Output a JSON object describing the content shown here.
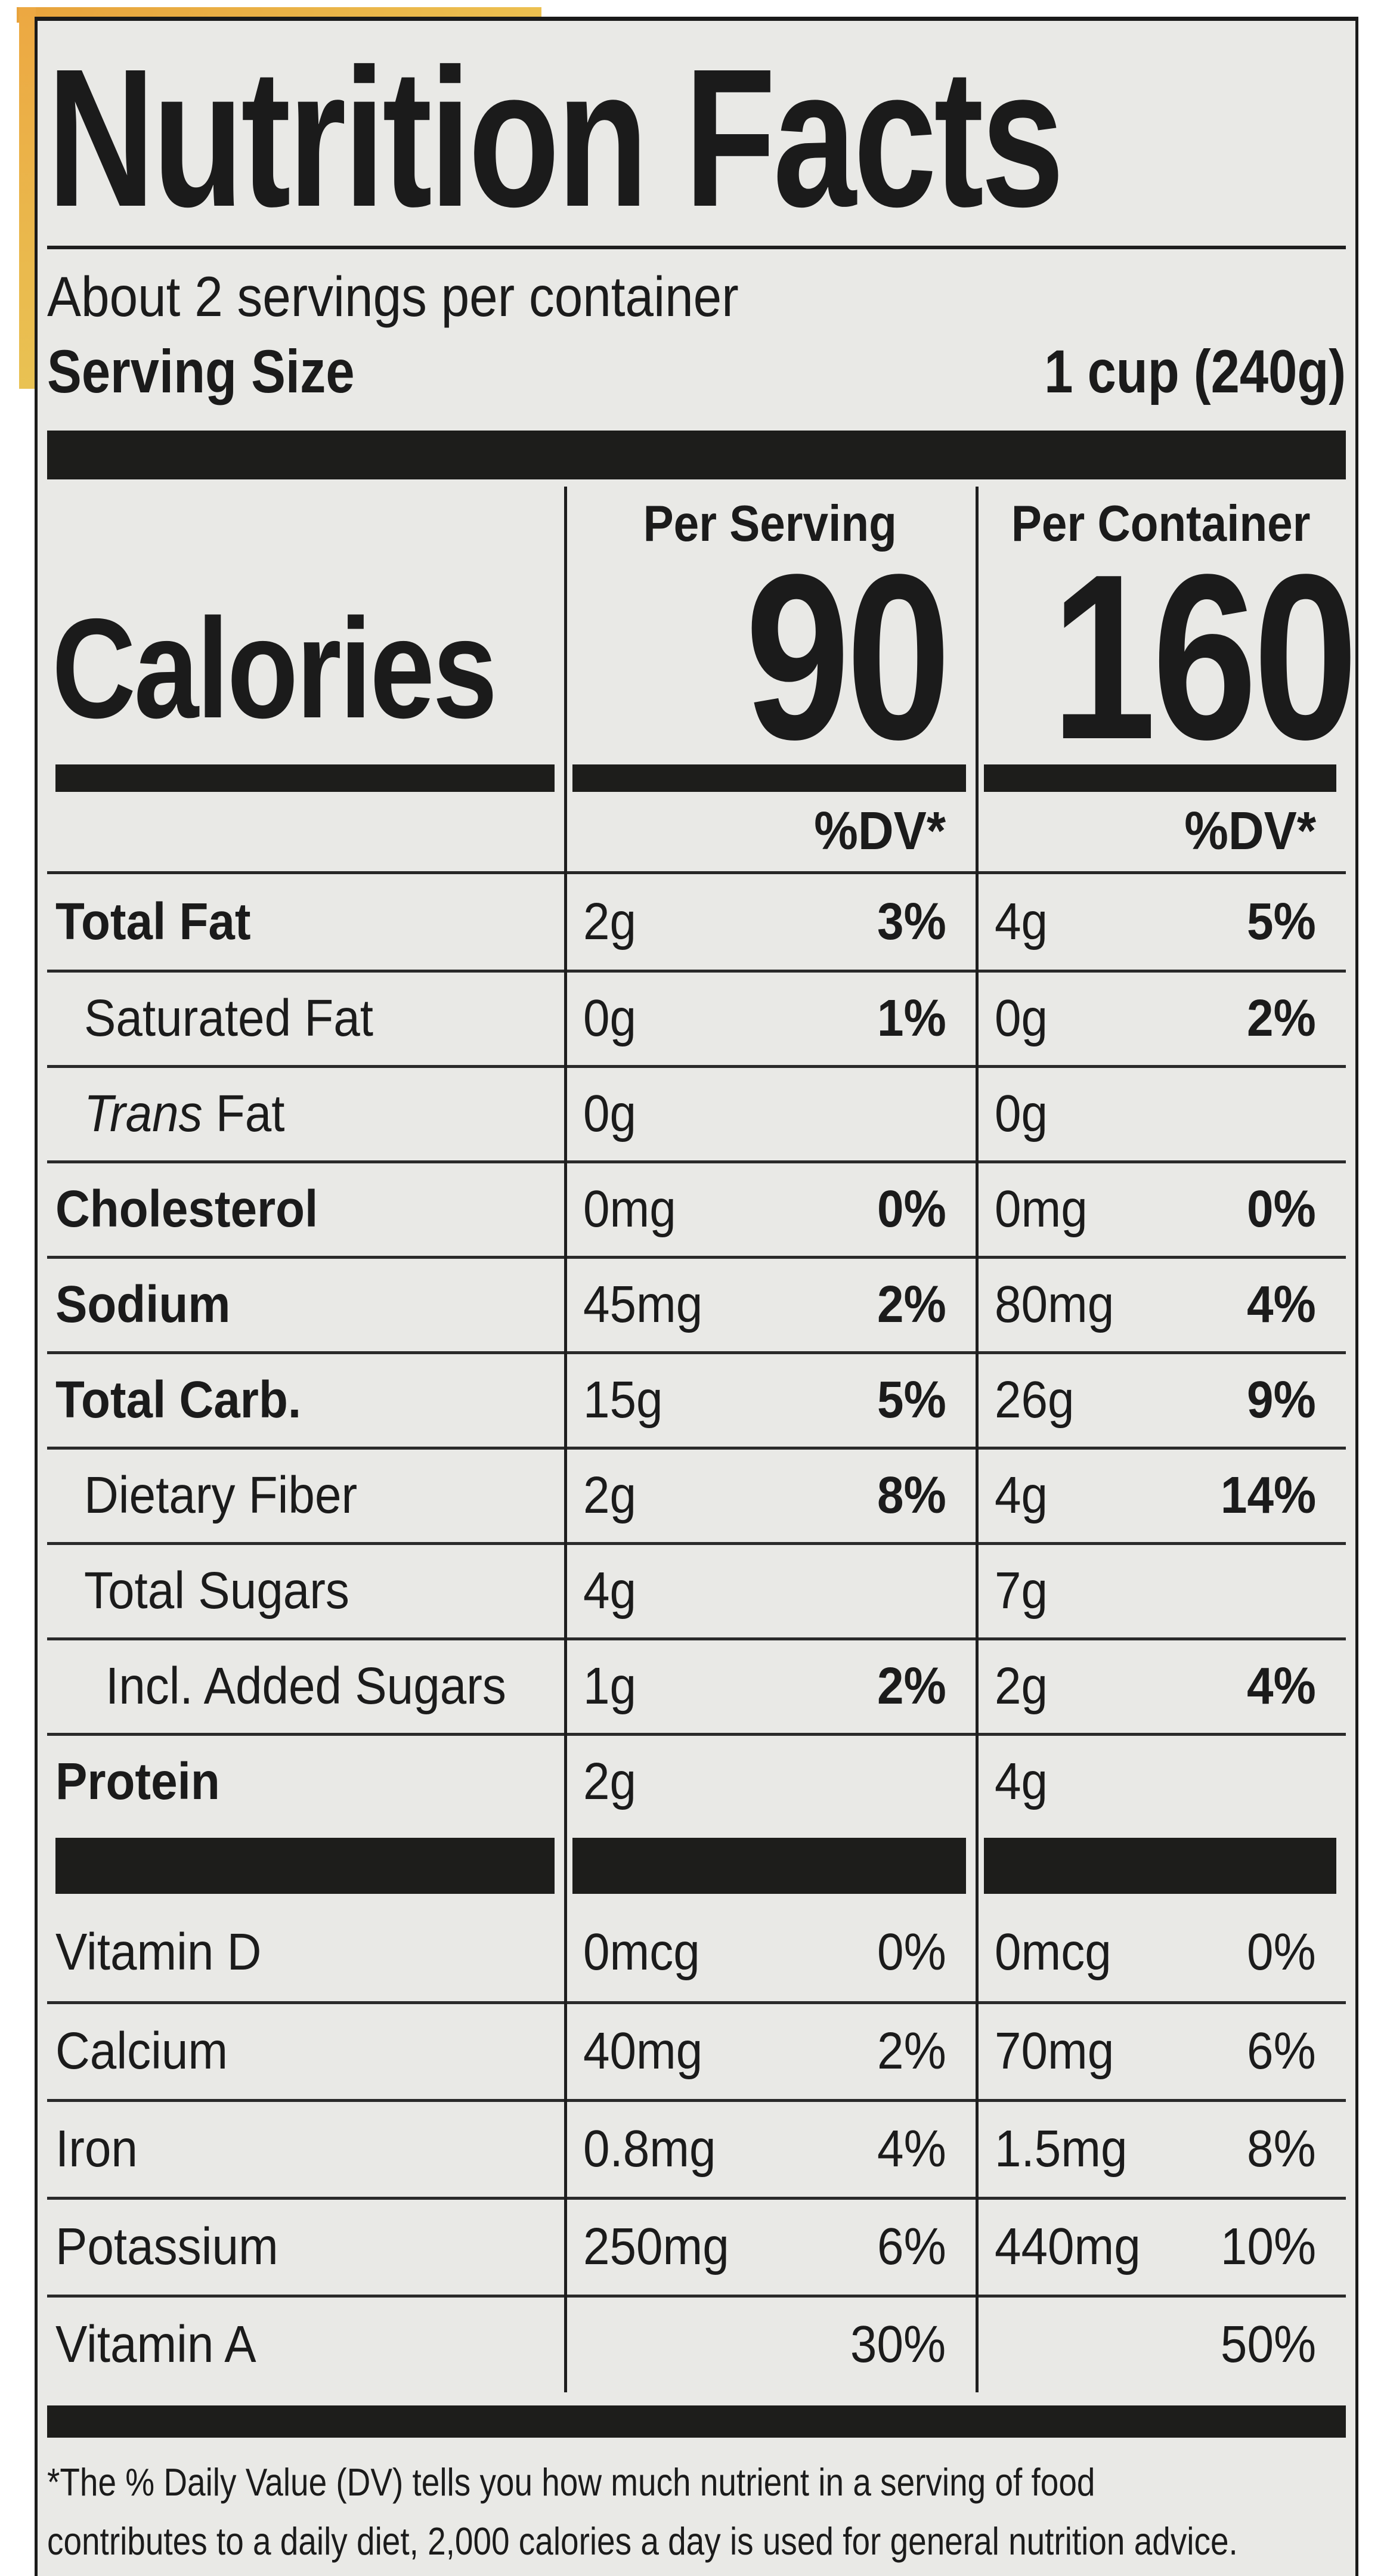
{
  "page": {
    "background_color": "#ffffff",
    "accent_strip_color": "#e9a93e",
    "label_background_color": "#e9e9e6",
    "ink_color": "#1b1b1b"
  },
  "label": {
    "title": "Nutrition Facts",
    "servings_per_container": "About 2 servings per container",
    "serving_size_label": "Serving Size",
    "serving_size_value": "1 cup (240g)",
    "calories": {
      "label": "Calories",
      "col_serving_header": "Per Serving",
      "col_container_header": "Per Container",
      "per_serving": "90",
      "per_container": "160"
    },
    "dv_header": "%DV*",
    "nutrient_rows": [
      {
        "name": "Total Fat",
        "style": "b",
        "serving": {
          "amount": "2g",
          "dv": "3%"
        },
        "container": {
          "amount": "4g",
          "dv": "5%"
        },
        "dv_bold": true
      },
      {
        "name": "Saturated Fat",
        "style": "i1",
        "serving": {
          "amount": "0g",
          "dv": "1%"
        },
        "container": {
          "amount": "0g",
          "dv": "2%"
        },
        "dv_bold": true
      },
      {
        "name_italic": "Trans",
        "name": "Fat",
        "style": "i1",
        "serving": {
          "amount": "0g",
          "dv": ""
        },
        "container": {
          "amount": "0g",
          "dv": ""
        },
        "dv_bold": true
      },
      {
        "name": "Cholesterol",
        "style": "b",
        "serving": {
          "amount": "0mg",
          "dv": "0%"
        },
        "container": {
          "amount": "0mg",
          "dv": "0%"
        },
        "dv_bold": true
      },
      {
        "name": "Sodium",
        "style": "b",
        "serving": {
          "amount": "45mg",
          "dv": "2%"
        },
        "container": {
          "amount": "80mg",
          "dv": "4%"
        },
        "dv_bold": true
      },
      {
        "name": "Total Carb.",
        "style": "b",
        "serving": {
          "amount": "15g",
          "dv": "5%"
        },
        "container": {
          "amount": "26g",
          "dv": "9%"
        },
        "dv_bold": true
      },
      {
        "name": "Dietary Fiber",
        "style": "i1",
        "serving": {
          "amount": "2g",
          "dv": "8%"
        },
        "container": {
          "amount": "4g",
          "dv": "14%"
        },
        "dv_bold": true
      },
      {
        "name": "Total Sugars",
        "style": "i1",
        "serving": {
          "amount": "4g",
          "dv": ""
        },
        "container": {
          "amount": "7g",
          "dv": ""
        },
        "dv_bold": true
      },
      {
        "name": "Incl. Added Sugars",
        "style": "i2",
        "serving": {
          "amount": "1g",
          "dv": "2%"
        },
        "container": {
          "amount": "2g",
          "dv": "4%"
        },
        "dv_bold": true
      },
      {
        "name": "Protein",
        "style": "b",
        "serving": {
          "amount": "2g",
          "dv": ""
        },
        "container": {
          "amount": "4g",
          "dv": ""
        },
        "dv_bold": true
      }
    ],
    "vitamin_rows": [
      {
        "name": "Vitamin D",
        "style": "",
        "serving": {
          "amount": "0mcg",
          "dv": "0%"
        },
        "container": {
          "amount": "0mcg",
          "dv": "0%"
        },
        "dv_bold": false
      },
      {
        "name": "Calcium",
        "style": "",
        "serving": {
          "amount": "40mg",
          "dv": "2%"
        },
        "container": {
          "amount": "70mg",
          "dv": "6%"
        },
        "dv_bold": false
      },
      {
        "name": "Iron",
        "style": "",
        "serving": {
          "amount": "0.8mg",
          "dv": "4%"
        },
        "container": {
          "amount": "1.5mg",
          "dv": "8%"
        },
        "dv_bold": false
      },
      {
        "name": "Potassium",
        "style": "",
        "serving": {
          "amount": "250mg",
          "dv": "6%"
        },
        "container": {
          "amount": "440mg",
          "dv": "10%"
        },
        "dv_bold": false
      },
      {
        "name": "Vitamin A",
        "style": "",
        "serving": {
          "amount": "",
          "dv": "30%"
        },
        "container": {
          "amount": "",
          "dv": "50%"
        },
        "dv_bold": false
      }
    ],
    "footnote_line1": "*The % Daily Value (DV) tells you how much nutrient in a serving of food",
    "footnote_line2": "contributes to a daily diet, 2,000 calories a day is used for general nutrition advice."
  }
}
